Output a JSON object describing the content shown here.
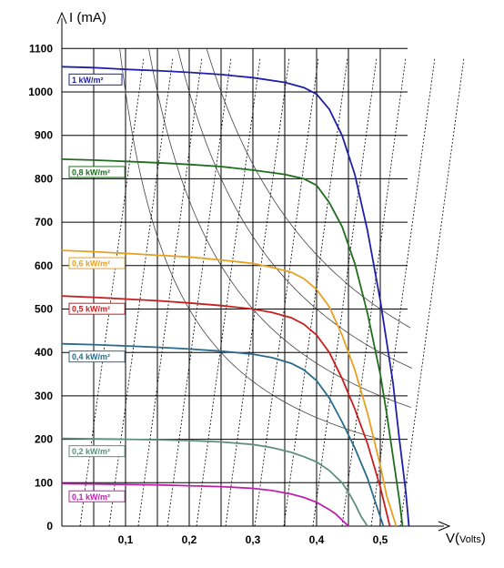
{
  "chart_data": {
    "type": "line",
    "xlabel": "V",
    "xlabel_unit": "Volts",
    "ylabel": "I (mA)",
    "xlim": [
      0,
      0.55
    ],
    "ylim": [
      0,
      1100
    ],
    "x_ticks": [
      "0,1",
      "0,2",
      "0,3",
      "0,4",
      "0,5"
    ],
    "y_ticks": [
      "0",
      "100",
      "200",
      "300",
      "400",
      "500",
      "600",
      "700",
      "800",
      "900",
      "1000",
      "1100"
    ],
    "grid": true,
    "series": [
      {
        "name": "1 kW/m²",
        "color": "#1f1fa8",
        "isc": 1058,
        "voc": 0.545,
        "points": [
          [
            0,
            1058
          ],
          [
            0.05,
            1056
          ],
          [
            0.1,
            1052
          ],
          [
            0.15,
            1049
          ],
          [
            0.2,
            1045
          ],
          [
            0.25,
            1040
          ],
          [
            0.3,
            1033
          ],
          [
            0.35,
            1022
          ],
          [
            0.38,
            1010
          ],
          [
            0.4,
            995
          ],
          [
            0.42,
            960
          ],
          [
            0.44,
            900
          ],
          [
            0.46,
            810
          ],
          [
            0.48,
            680
          ],
          [
            0.5,
            520
          ],
          [
            0.52,
            330
          ],
          [
            0.53,
            200
          ],
          [
            0.54,
            80
          ],
          [
            0.545,
            0
          ]
        ]
      },
      {
        "name": "0,8 kW/m²",
        "color": "#1e6e1e",
        "isc": 845,
        "voc": 0.535,
        "points": [
          [
            0,
            845
          ],
          [
            0.05,
            843
          ],
          [
            0.1,
            840
          ],
          [
            0.15,
            837
          ],
          [
            0.2,
            833
          ],
          [
            0.25,
            828
          ],
          [
            0.3,
            820
          ],
          [
            0.35,
            810
          ],
          [
            0.38,
            800
          ],
          [
            0.4,
            785
          ],
          [
            0.42,
            745
          ],
          [
            0.44,
            690
          ],
          [
            0.46,
            605
          ],
          [
            0.48,
            490
          ],
          [
            0.5,
            350
          ],
          [
            0.51,
            260
          ],
          [
            0.52,
            160
          ],
          [
            0.53,
            60
          ],
          [
            0.535,
            0
          ]
        ]
      },
      {
        "name": "0,6 kW/m²",
        "color": "#e8a020",
        "isc": 635,
        "voc": 0.525,
        "points": [
          [
            0,
            635
          ],
          [
            0.05,
            632
          ],
          [
            0.1,
            628
          ],
          [
            0.15,
            624
          ],
          [
            0.2,
            620
          ],
          [
            0.25,
            613
          ],
          [
            0.3,
            605
          ],
          [
            0.33,
            596
          ],
          [
            0.36,
            585
          ],
          [
            0.38,
            570
          ],
          [
            0.4,
            545
          ],
          [
            0.42,
            505
          ],
          [
            0.44,
            440
          ],
          [
            0.46,
            360
          ],
          [
            0.48,
            260
          ],
          [
            0.5,
            140
          ],
          [
            0.51,
            70
          ],
          [
            0.525,
            0
          ]
        ]
      },
      {
        "name": "0,5 kW/m²",
        "color": "#c81e1e",
        "isc": 530,
        "voc": 0.515,
        "points": [
          [
            0,
            530
          ],
          [
            0.05,
            527
          ],
          [
            0.1,
            523
          ],
          [
            0.15,
            519
          ],
          [
            0.2,
            514
          ],
          [
            0.25,
            508
          ],
          [
            0.3,
            500
          ],
          [
            0.33,
            492
          ],
          [
            0.36,
            480
          ],
          [
            0.38,
            465
          ],
          [
            0.4,
            440
          ],
          [
            0.42,
            400
          ],
          [
            0.44,
            340
          ],
          [
            0.46,
            270
          ],
          [
            0.48,
            190
          ],
          [
            0.5,
            90
          ],
          [
            0.515,
            0
          ]
        ]
      },
      {
        "name": "0,4 kW/m²",
        "color": "#2a6a8a",
        "isc": 420,
        "voc": 0.505,
        "points": [
          [
            0,
            420
          ],
          [
            0.05,
            418
          ],
          [
            0.1,
            415
          ],
          [
            0.15,
            412
          ],
          [
            0.2,
            408
          ],
          [
            0.25,
            403
          ],
          [
            0.3,
            396
          ],
          [
            0.33,
            388
          ],
          [
            0.36,
            375
          ],
          [
            0.38,
            360
          ],
          [
            0.4,
            335
          ],
          [
            0.42,
            295
          ],
          [
            0.44,
            240
          ],
          [
            0.46,
            180
          ],
          [
            0.48,
            110
          ],
          [
            0.49,
            65
          ],
          [
            0.505,
            0
          ]
        ]
      },
      {
        "name": "0,2 kW/m²",
        "color": "#5f8f80",
        "isc": 202,
        "voc": 0.48,
        "points": [
          [
            0,
            202
          ],
          [
            0.05,
            201
          ],
          [
            0.1,
            200
          ],
          [
            0.15,
            199
          ],
          [
            0.2,
            197
          ],
          [
            0.25,
            194
          ],
          [
            0.3,
            188
          ],
          [
            0.33,
            181
          ],
          [
            0.36,
            170
          ],
          [
            0.38,
            160
          ],
          [
            0.4,
            148
          ],
          [
            0.42,
            128
          ],
          [
            0.44,
            100
          ],
          [
            0.45,
            78
          ],
          [
            0.46,
            52
          ],
          [
            0.47,
            22
          ],
          [
            0.48,
            0
          ]
        ]
      },
      {
        "name": "0,1 kW/m²",
        "color": "#c020b0",
        "isc": 98,
        "voc": 0.45,
        "points": [
          [
            0,
            98
          ],
          [
            0.05,
            97
          ],
          [
            0.1,
            96
          ],
          [
            0.15,
            95
          ],
          [
            0.2,
            93
          ],
          [
            0.25,
            91
          ],
          [
            0.3,
            87
          ],
          [
            0.33,
            82
          ],
          [
            0.36,
            74
          ],
          [
            0.38,
            66
          ],
          [
            0.4,
            55
          ],
          [
            0.42,
            38
          ],
          [
            0.43,
            28
          ],
          [
            0.44,
            14
          ],
          [
            0.45,
            0
          ]
        ]
      }
    ]
  }
}
